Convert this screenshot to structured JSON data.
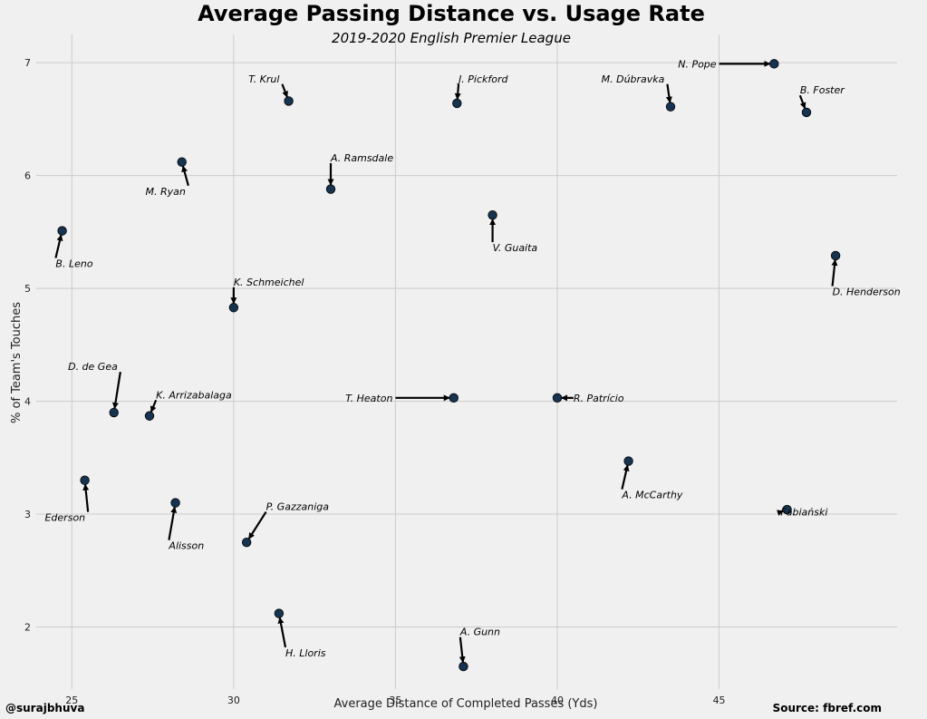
{
  "chart_data": {
    "type": "scatter",
    "title": "Average Passing Distance vs. Usage Rate",
    "subtitle": "2019-2020 English Premier League",
    "xlabel": "Average Distance of Completed Passes (Yds)",
    "ylabel": "% of Team's Touches",
    "xlim": [
      23.9,
      50.5
    ],
    "ylim": [
      1.45,
      7.25
    ],
    "xticks": [
      25,
      30,
      35,
      40,
      45
    ],
    "yticks": [
      2,
      3,
      4,
      5,
      6,
      7
    ],
    "grid": true,
    "point_color": "#16344f",
    "points": [
      {
        "name": "N. Pope",
        "x": 46.7,
        "y": 6.99,
        "lx": 45.0,
        "ly": 6.99,
        "ha": "right"
      },
      {
        "name": "J. Pickford",
        "x": 36.9,
        "y": 6.64,
        "lx": 36.95,
        "ly": 6.81,
        "ha": "left"
      },
      {
        "name": "T. Krul",
        "x": 31.7,
        "y": 6.66,
        "lx": 31.5,
        "ly": 6.81,
        "ha": "right"
      },
      {
        "name": "M. Dúbravka",
        "x": 43.5,
        "y": 6.61,
        "lx": 43.4,
        "ly": 6.81,
        "ha": "right"
      },
      {
        "name": "B. Foster",
        "x": 47.7,
        "y": 6.56,
        "lx": 47.5,
        "ly": 6.71,
        "ha": "left"
      },
      {
        "name": "M. Ryan",
        "x": 28.4,
        "y": 6.12,
        "lx": 28.6,
        "ly": 5.91,
        "ha": "right"
      },
      {
        "name": "A. Ramsdale",
        "x": 33.0,
        "y": 5.88,
        "lx": 33.0,
        "ly": 6.11,
        "ha": "left"
      },
      {
        "name": "V. Guaita",
        "x": 38.0,
        "y": 5.65,
        "lx": 38.0,
        "ly": 5.41,
        "ha": "left"
      },
      {
        "name": "B. Leno",
        "x": 24.7,
        "y": 5.51,
        "lx": 24.5,
        "ly": 5.27,
        "ha": "left"
      },
      {
        "name": "D. Henderson",
        "x": 48.6,
        "y": 5.29,
        "lx": 48.5,
        "ly": 5.02,
        "ha": "left"
      },
      {
        "name": "K. Schmeichel",
        "x": 30.0,
        "y": 4.83,
        "lx": 30.0,
        "ly": 5.01,
        "ha": "left"
      },
      {
        "name": "D. de Gea",
        "x": 26.3,
        "y": 3.9,
        "lx": 26.5,
        "ly": 4.26,
        "ha": "right"
      },
      {
        "name": "K. Arrizabalaga",
        "x": 27.4,
        "y": 3.87,
        "lx": 27.6,
        "ly": 4.01,
        "ha": "left"
      },
      {
        "name": "T. Heaton",
        "x": 36.8,
        "y": 4.03,
        "lx": 35.0,
        "ly": 4.03,
        "ha": "right"
      },
      {
        "name": "R. Patrício",
        "x": 40.0,
        "y": 4.03,
        "lx": 40.5,
        "ly": 4.03,
        "ha": "left"
      },
      {
        "name": "A. McCarthy",
        "x": 42.2,
        "y": 3.47,
        "lx": 42.0,
        "ly": 3.22,
        "ha": "left"
      },
      {
        "name": "Ederson",
        "x": 25.4,
        "y": 3.3,
        "lx": 25.5,
        "ly": 3.02,
        "ha": "right"
      },
      {
        "name": "Alisson",
        "x": 28.2,
        "y": 3.1,
        "lx": 28.0,
        "ly": 2.77,
        "ha": "left"
      },
      {
        "name": "Fabiański",
        "x": 47.1,
        "y": 3.04,
        "lx": 46.9,
        "ly": 3.02,
        "ha": "left"
      },
      {
        "name": "P. Gazzaniga",
        "x": 30.4,
        "y": 2.75,
        "lx": 31.0,
        "ly": 3.02,
        "ha": "left"
      },
      {
        "name": "H. Lloris",
        "x": 31.4,
        "y": 2.12,
        "lx": 31.6,
        "ly": 1.82,
        "ha": "left"
      },
      {
        "name": "A. Gunn",
        "x": 37.1,
        "y": 1.65,
        "lx": 37.0,
        "ly": 1.91,
        "ha": "left"
      }
    ]
  },
  "footer": {
    "left": "@surajbhuva",
    "right": "Source: fbref.com"
  }
}
